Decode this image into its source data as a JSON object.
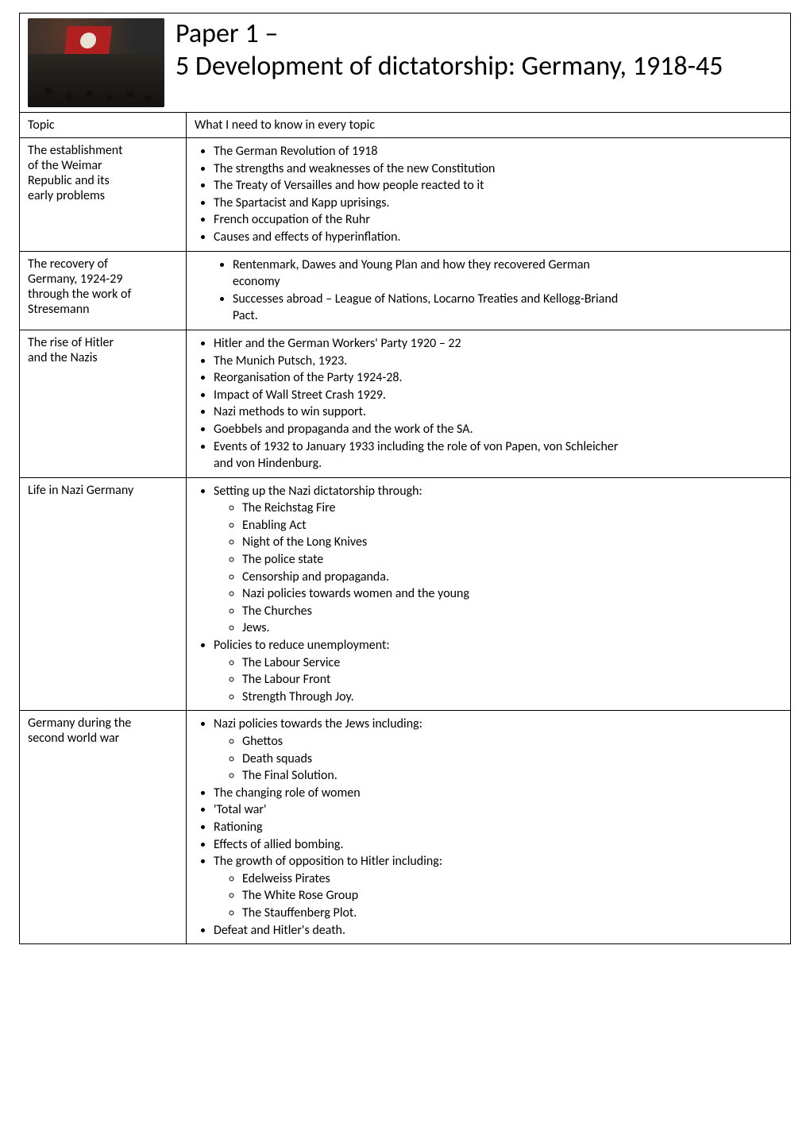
{
  "header": {
    "title_line1": "Paper 1 –",
    "title_line2": "5 Development of dictatorship: Germany, 1918-45",
    "thumb_alt": "Nazi rally crowd with red swastika flags"
  },
  "topics_row": {
    "left": "Topic",
    "right": "What I need to know in every topic"
  },
  "sections": [
    {
      "left_lines": [
        "The establishment",
        "of the Weimar",
        "Republic and its",
        "early problems"
      ],
      "bullets": [
        {
          "text": "The German Revolution of 1918"
        },
        {
          "text": "The strengths and weaknesses of the new Constitution"
        },
        {
          "text": "The Treaty of Versailles and how people reacted to it"
        },
        {
          "text": "The Spartacist and Kapp uprisings."
        },
        {
          "text": "French occupation of the Ruhr"
        },
        {
          "text": "Causes and effects of hyperinflation."
        }
      ]
    },
    {
      "left_lines": [
        "The recovery of",
        "Germany, 1924-29",
        "through the work of",
        "Stresemann"
      ],
      "inset": true,
      "bullets": [
        {
          "text": "Rentenmark, Dawes and Young Plan and how they recovered German",
          "cont": "economy"
        },
        {
          "text": "Successes abroad – League of Nations, Locarno Treaties and Kellogg-Briand",
          "cont": "Pact."
        }
      ]
    },
    {
      "left_lines": [
        "The rise of Hitler",
        "and the Nazis"
      ],
      "bullets": [
        {
          "text": "Hitler and the German Workers' Party 1920 – 22"
        },
        {
          "text": "The Munich Putsch, 1923."
        },
        {
          "text": "Reorganisation of the Party 1924-28."
        },
        {
          "text": "Impact of Wall Street Crash 1929."
        },
        {
          "text": "Nazi methods to win support."
        },
        {
          "text": "Goebbels and propaganda and the work of the SA."
        },
        {
          "text": "Events of 1932 to January 1933 including the role of von Papen, von Schleicher",
          "cont": "and von Hindenburg."
        }
      ]
    },
    {
      "left_lines": [
        "Life in Nazi Germany"
      ],
      "bullets": [
        {
          "text": "Setting up the Nazi dictatorship through:",
          "sub": [
            "The Reichstag Fire",
            "Enabling Act",
            "Night of the Long Knives",
            "The police state",
            "Censorship and propaganda.",
            "Nazi policies towards women and the young",
            "The Churches",
            "Jews."
          ]
        },
        {
          "text": "Policies to reduce unemployment:",
          "sub": [
            "The Labour Service",
            "The Labour Front",
            "Strength Through Joy."
          ]
        }
      ]
    },
    {
      "left_lines": [
        "Germany during the",
        "second world war"
      ],
      "bullets": [
        {
          "text": "Nazi policies towards the Jews including:",
          "sub": [
            "Ghettos",
            "Death squads",
            "The Final Solution."
          ]
        },
        {
          "text": "The changing role of women"
        },
        {
          "text": "'Total war'"
        },
        {
          "text": "Rationing"
        },
        {
          "text": "Effects of allied bombing."
        },
        {
          "text": "The growth of opposition to Hitler including:",
          "sub": [
            "Edelweiss Pirates",
            "The White Rose Group",
            "The Stauffenberg Plot."
          ]
        },
        {
          "text": "Defeat and Hitler's death."
        }
      ]
    }
  ]
}
